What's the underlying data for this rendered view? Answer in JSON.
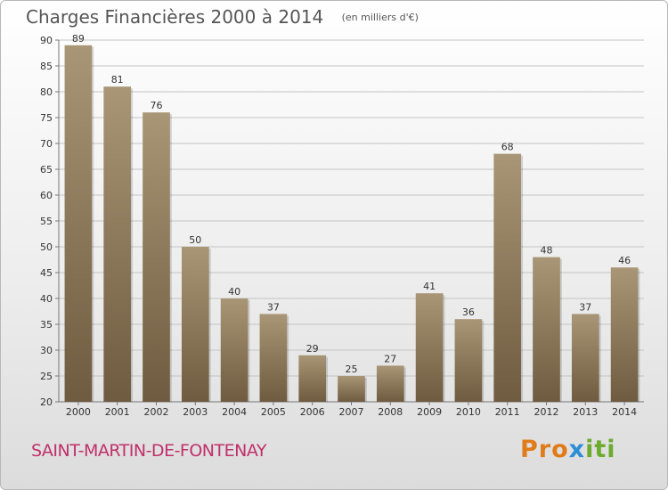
{
  "chart_data": {
    "type": "bar",
    "title": "Charges Financières 2000 à 2014",
    "unit": "(en milliers d'€)",
    "categories": [
      "2000",
      "2001",
      "2002",
      "2003",
      "2004",
      "2005",
      "2006",
      "2007",
      "2008",
      "2009",
      "2010",
      "2011",
      "2012",
      "2013",
      "2014"
    ],
    "values": [
      89,
      81,
      76,
      50,
      40,
      37,
      29,
      25,
      27,
      41,
      36,
      68,
      48,
      37,
      46
    ],
    "ylim": [
      20,
      90
    ],
    "yticks": [
      20,
      25,
      30,
      35,
      40,
      45,
      50,
      55,
      60,
      65,
      70,
      75,
      80,
      85,
      90
    ],
    "grid": true,
    "bar_color_top": "#a89676",
    "bar_color_bottom": "#6f5b3f"
  },
  "footer": {
    "commune": "SAINT-MARTIN-DE-FONTENAY",
    "logo": {
      "part1": "Pro",
      "part2": "x",
      "part3": "iti"
    }
  }
}
